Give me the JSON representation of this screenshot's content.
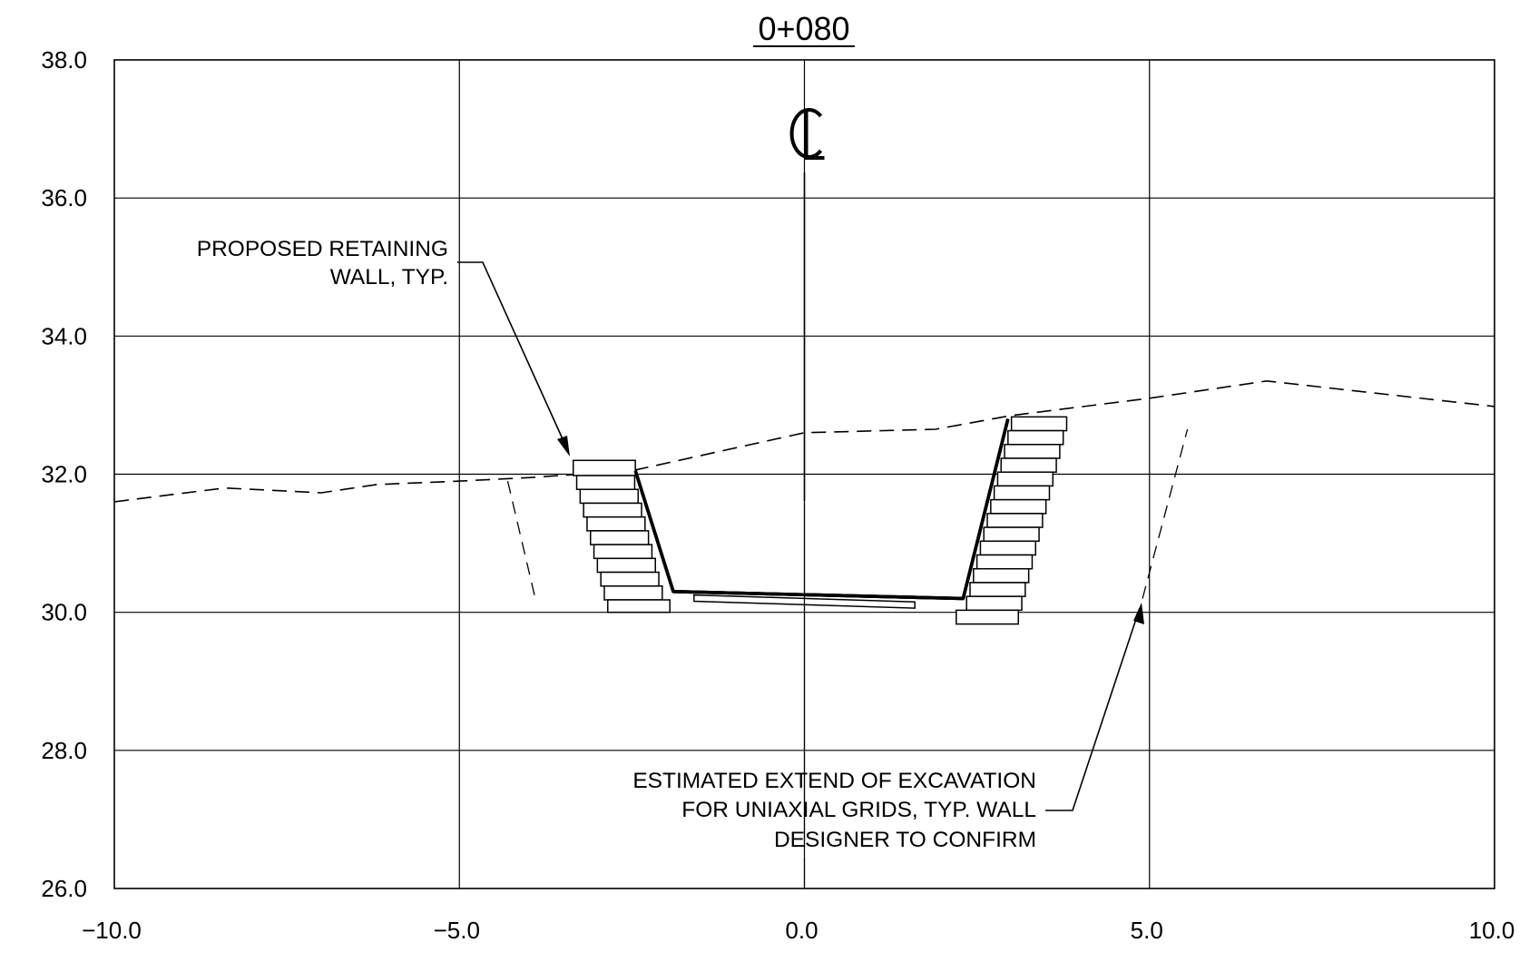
{
  "section": {
    "title": "0+080",
    "centerline_symbol": "CL"
  },
  "annotations": {
    "retaining_wall": [
      "PROPOSED RETAINING",
      "WALL, TYP."
    ],
    "excavation": [
      "ESTIMATED EXTEND OF EXCAVATION",
      "FOR UNIAXIAL GRIDS, TYP. WALL",
      "DESIGNER TO CONFIRM"
    ]
  },
  "chart_data": {
    "type": "line",
    "xlim": [
      -10.0,
      10.0
    ],
    "ylim": [
      26.0,
      38.0
    ],
    "x_ticks": [
      "−10.0",
      "−5.0",
      "0.0",
      "5.0",
      "10.0"
    ],
    "y_ticks": [
      "38.0",
      "36.0",
      "34.0",
      "32.0",
      "30.0",
      "28.0",
      "26.0"
    ],
    "grid": true,
    "series": [
      {
        "style": "dashed",
        "x": [
          -10.0,
          -8.4,
          -7.0,
          -6.2,
          -5.0,
          -4.0,
          -2.5,
          0.0,
          1.9,
          3.0,
          5.0,
          6.7,
          10.0
        ],
        "y": [
          31.6,
          31.8,
          31.73,
          31.85,
          31.9,
          31.95,
          32.05,
          32.6,
          32.65,
          32.85,
          33.1,
          33.35,
          32.98
        ]
      },
      {
        "style": "dashed",
        "x": [
          -4.3,
          -3.9
        ],
        "y": [
          31.9,
          30.2
        ]
      },
      {
        "style": "dashed",
        "x": [
          4.9,
          5.55
        ],
        "y": [
          30.2,
          32.65
        ]
      },
      {
        "style": "solid-heavy",
        "x": [
          -2.45,
          -1.9,
          2.3,
          2.95
        ],
        "y": [
          32.05,
          30.3,
          30.2,
          32.8
        ]
      }
    ],
    "wall_blocks": {
      "left": [
        {
          "x0": -3.35,
          "x1": -2.45,
          "y0": 31.98,
          "y1": 32.2
        },
        {
          "x0": -3.3,
          "x1": -2.46,
          "y0": 31.78,
          "y1": 31.98
        },
        {
          "x0": -3.25,
          "x1": -2.41,
          "y0": 31.58,
          "y1": 31.78
        },
        {
          "x0": -3.2,
          "x1": -2.36,
          "y0": 31.38,
          "y1": 31.58
        },
        {
          "x0": -3.15,
          "x1": -2.31,
          "y0": 31.18,
          "y1": 31.38
        },
        {
          "x0": -3.1,
          "x1": -2.26,
          "y0": 30.98,
          "y1": 31.18
        },
        {
          "x0": -3.05,
          "x1": -2.21,
          "y0": 30.78,
          "y1": 30.98
        },
        {
          "x0": -3.0,
          "x1": -2.16,
          "y0": 30.58,
          "y1": 30.78
        },
        {
          "x0": -2.95,
          "x1": -2.11,
          "y0": 30.38,
          "y1": 30.58
        },
        {
          "x0": -2.9,
          "x1": -2.06,
          "y0": 30.18,
          "y1": 30.38
        },
        {
          "x0": -2.85,
          "x1": -1.95,
          "y0": 30.0,
          "y1": 30.18
        }
      ],
      "right": [
        {
          "x0": 3.0,
          "x1": 3.8,
          "y0": 32.63,
          "y1": 32.83
        },
        {
          "x0": 2.95,
          "x1": 3.75,
          "y0": 32.43,
          "y1": 32.63
        },
        {
          "x0": 2.9,
          "x1": 3.7,
          "y0": 32.23,
          "y1": 32.43
        },
        {
          "x0": 2.85,
          "x1": 3.65,
          "y0": 32.03,
          "y1": 32.23
        },
        {
          "x0": 2.8,
          "x1": 3.6,
          "y0": 31.83,
          "y1": 32.03
        },
        {
          "x0": 2.75,
          "x1": 3.55,
          "y0": 31.63,
          "y1": 31.83
        },
        {
          "x0": 2.7,
          "x1": 3.5,
          "y0": 31.43,
          "y1": 31.63
        },
        {
          "x0": 2.65,
          "x1": 3.45,
          "y0": 31.23,
          "y1": 31.43
        },
        {
          "x0": 2.6,
          "x1": 3.4,
          "y0": 31.03,
          "y1": 31.23
        },
        {
          "x0": 2.55,
          "x1": 3.35,
          "y0": 30.83,
          "y1": 31.03
        },
        {
          "x0": 2.5,
          "x1": 3.3,
          "y0": 30.63,
          "y1": 30.83
        },
        {
          "x0": 2.45,
          "x1": 3.25,
          "y0": 30.43,
          "y1": 30.63
        },
        {
          "x0": 2.4,
          "x1": 3.2,
          "y0": 30.23,
          "y1": 30.43
        },
        {
          "x0": 2.35,
          "x1": 3.15,
          "y0": 30.03,
          "y1": 30.23
        },
        {
          "x0": 2.2,
          "x1": 3.1,
          "y0": 29.83,
          "y1": 30.03
        }
      ]
    },
    "base_slab": {
      "x0": -1.6,
      "x1": 1.6,
      "y_top_left": 30.25,
      "y_top_right": 30.15,
      "thickness": 0.09
    }
  }
}
